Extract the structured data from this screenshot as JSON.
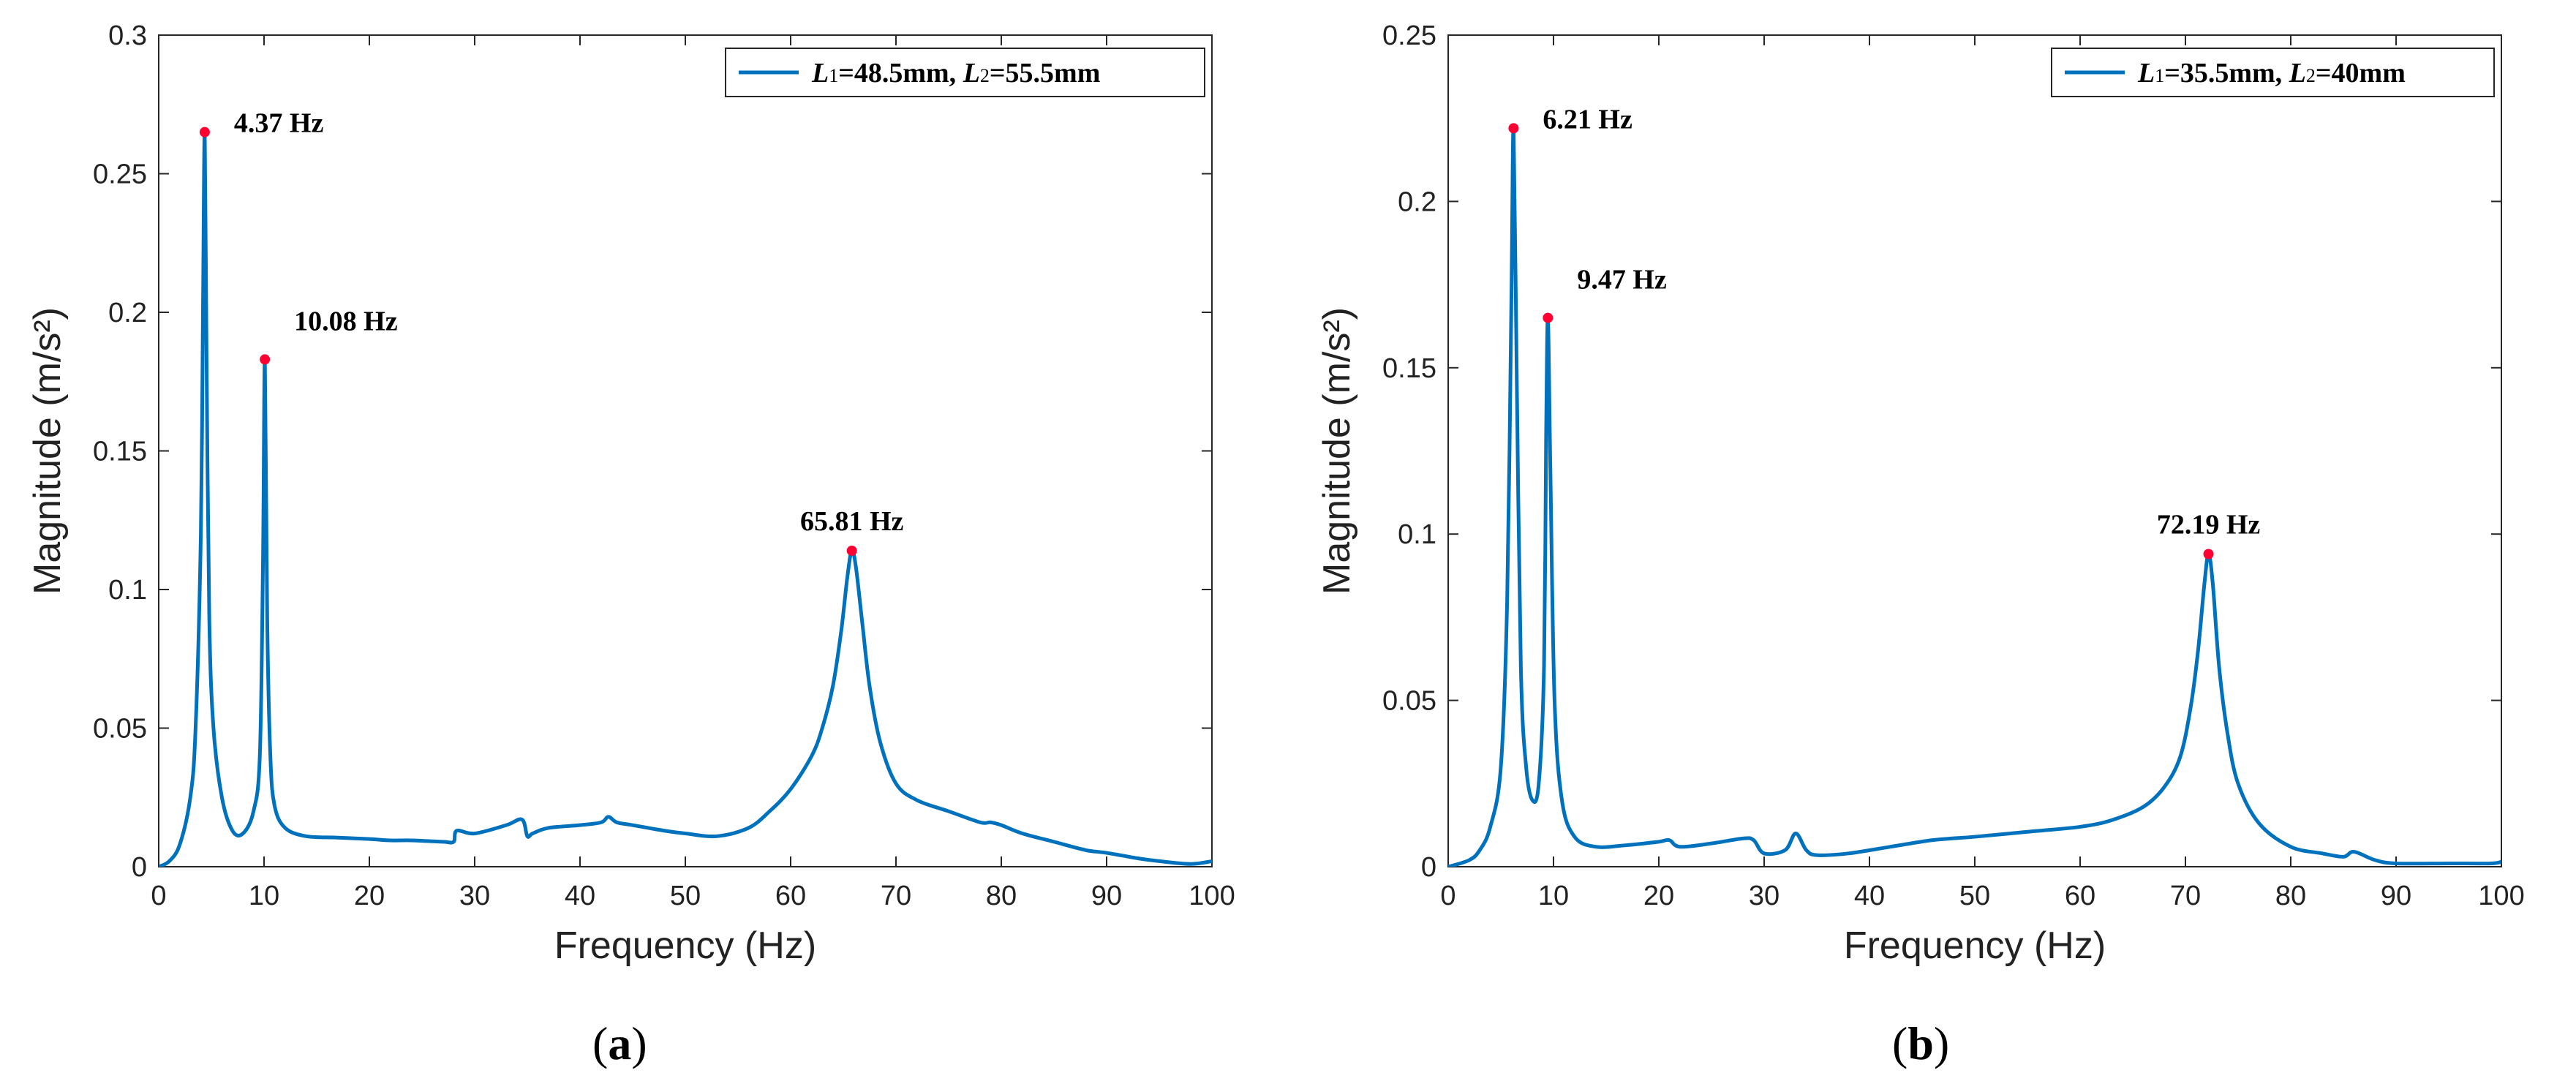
{
  "chart_data": [
    {
      "type": "line",
      "panel_label": "(a)",
      "xlabel": "Frequency (Hz)",
      "ylabel": "Magnitude (m/s²)",
      "xlim": [
        0,
        100
      ],
      "ylim": [
        0,
        0.3
      ],
      "xticks": [
        0,
        10,
        20,
        30,
        40,
        50,
        60,
        70,
        80,
        90,
        100
      ],
      "yticks": [
        0,
        0.05,
        0.1,
        0.15,
        0.2,
        0.25,
        0.3
      ],
      "ytick_labels": [
        "0",
        "0.05",
        "0.1",
        "0.15",
        "0.2",
        "0.25",
        "0.3"
      ],
      "legend": "L1=48.5mm, L2=55.5mm",
      "legend_parts": {
        "l1": "L",
        "l1sub": "1",
        "v1": "=48.5mm, ",
        "l2": "L",
        "l2sub": "2",
        "v2": "=55.5mm"
      },
      "color": "#0072BD",
      "peak_color": "#FF0033",
      "peaks": [
        {
          "x": 4.37,
          "y": 0.265,
          "label": "4.37 Hz"
        },
        {
          "x": 10.08,
          "y": 0.183,
          "label": "10.08 Hz"
        },
        {
          "x": 65.81,
          "y": 0.114,
          "label": "65.81 Hz"
        }
      ],
      "series": [
        {
          "name": "L1=48.5mm, L2=55.5mm",
          "x": [
            0,
            1,
            2,
            3,
            3.5,
            4,
            4.2,
            4.37,
            4.55,
            4.8,
            5.2,
            6,
            7,
            8,
            9,
            9.6,
            9.9,
            10.08,
            10.3,
            10.6,
            11,
            12,
            14,
            17,
            20,
            22,
            24,
            27,
            28,
            28.3,
            30,
            33,
            34.5,
            35,
            35.5,
            37,
            40,
            42,
            42.7,
            43.5,
            45,
            48,
            50,
            53,
            56,
            58,
            60,
            62,
            63,
            64,
            64.8,
            65.4,
            65.81,
            66.2,
            66.8,
            67.5,
            68.5,
            70,
            72,
            75,
            78,
            79,
            80,
            82,
            85,
            88,
            90,
            93,
            95,
            98,
            100
          ],
          "values": [
            0,
            0.002,
            0.008,
            0.025,
            0.05,
            0.12,
            0.2,
            0.265,
            0.18,
            0.09,
            0.05,
            0.025,
            0.013,
            0.012,
            0.02,
            0.04,
            0.11,
            0.183,
            0.09,
            0.04,
            0.022,
            0.014,
            0.011,
            0.0105,
            0.01,
            0.0095,
            0.0095,
            0.009,
            0.009,
            0.013,
            0.012,
            0.015,
            0.017,
            0.011,
            0.012,
            0.014,
            0.015,
            0.016,
            0.018,
            0.016,
            0.015,
            0.013,
            0.012,
            0.011,
            0.014,
            0.02,
            0.028,
            0.04,
            0.05,
            0.065,
            0.085,
            0.105,
            0.114,
            0.108,
            0.088,
            0.065,
            0.045,
            0.03,
            0.024,
            0.02,
            0.016,
            0.016,
            0.015,
            0.012,
            0.009,
            0.006,
            0.005,
            0.003,
            0.002,
            0.001,
            0.002
          ]
        }
      ]
    },
    {
      "type": "line",
      "panel_label": "(b)",
      "xlabel": "Frequency (Hz)",
      "ylabel": "Magnitude (m/s²)",
      "xlim": [
        0,
        100
      ],
      "ylim": [
        0,
        0.25
      ],
      "xticks": [
        0,
        10,
        20,
        30,
        40,
        50,
        60,
        70,
        80,
        90,
        100
      ],
      "yticks": [
        0,
        0.05,
        0.1,
        0.15,
        0.2,
        0.25
      ],
      "ytick_labels": [
        "0",
        "0.05",
        "0.1",
        "0.15",
        "0.2",
        "0.25"
      ],
      "legend": "L1=35.5mm, L2=40mm",
      "legend_parts": {
        "l1": "L",
        "l1sub": "1",
        "v1": "=35.5mm, ",
        "l2": "L",
        "l2sub": "2",
        "v2": "=40mm"
      },
      "color": "#0072BD",
      "peak_color": "#FF0033",
      "peaks": [
        {
          "x": 6.21,
          "y": 0.222,
          "label": "6.21 Hz"
        },
        {
          "x": 9.47,
          "y": 0.165,
          "label": "9.47 Hz"
        },
        {
          "x": 72.19,
          "y": 0.094,
          "label": "72.19 Hz"
        }
      ],
      "series": [
        {
          "name": "L1=35.5mm, L2=40mm",
          "x": [
            0,
            2,
            3,
            4,
            5,
            5.6,
            6,
            6.21,
            6.5,
            6.9,
            7.4,
            8,
            8.6,
            9.1,
            9.3,
            9.47,
            9.7,
            10.1,
            10.8,
            12,
            14,
            17,
            20,
            21,
            22,
            25,
            28,
            29,
            30,
            32,
            33,
            34,
            35,
            38,
            42,
            46,
            50,
            55,
            60,
            63,
            66,
            68,
            69.5,
            70.5,
            71.2,
            71.8,
            72.19,
            72.6,
            73.2,
            74,
            75,
            77,
            80,
            83,
            85,
            86,
            88,
            90,
            95,
            99,
            100
          ],
          "values": [
            0,
            0.002,
            0.005,
            0.012,
            0.03,
            0.08,
            0.17,
            0.222,
            0.15,
            0.06,
            0.03,
            0.02,
            0.025,
            0.06,
            0.13,
            0.165,
            0.12,
            0.05,
            0.02,
            0.009,
            0.006,
            0.0065,
            0.0075,
            0.008,
            0.006,
            0.007,
            0.0085,
            0.008,
            0.004,
            0.005,
            0.01,
            0.005,
            0.0035,
            0.004,
            0.006,
            0.008,
            0.009,
            0.0105,
            0.012,
            0.014,
            0.018,
            0.024,
            0.033,
            0.048,
            0.065,
            0.085,
            0.094,
            0.085,
            0.06,
            0.04,
            0.025,
            0.013,
            0.006,
            0.004,
            0.003,
            0.0045,
            0.002,
            0.001,
            0.001,
            0.001,
            0.0015
          ]
        }
      ]
    }
  ]
}
